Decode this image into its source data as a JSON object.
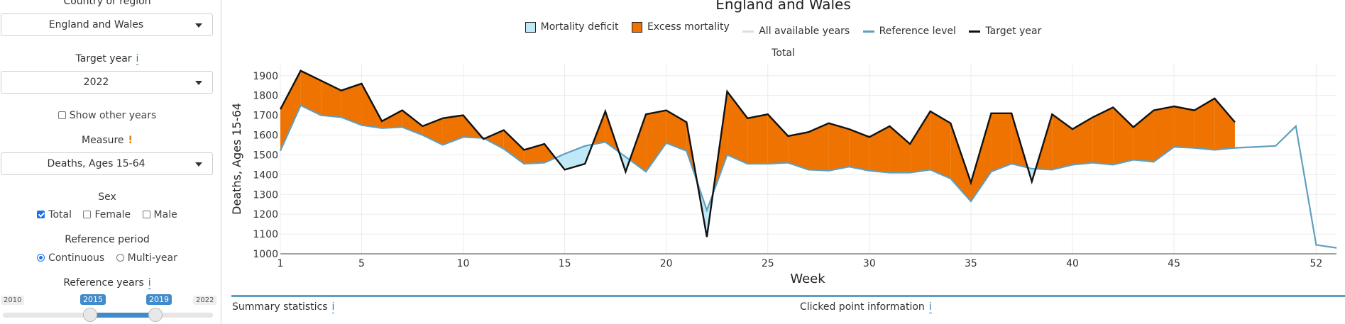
{
  "sidebar": {
    "country_label": "Country or region",
    "country_value": "England and Wales",
    "target_year_label": "Target year",
    "target_year_info": "i",
    "target_year_value": "2022",
    "show_other_years": "Show other years",
    "measure_label": "Measure",
    "measure_warn": "!",
    "measure_value": "Deaths, Ages 15-64",
    "sex_label": "Sex",
    "sex_options": [
      "Total",
      "Female",
      "Male"
    ],
    "sex_checked": [
      true,
      false,
      false
    ],
    "ref_period_label": "Reference period",
    "ref_period_options": [
      "Continuous",
      "Multi-year"
    ],
    "ref_period_selected": 0,
    "ref_years_label": "Reference years",
    "ref_years_info": "i",
    "ref_years_min": "2010",
    "ref_years_max": "2022",
    "ref_years_from": "2015",
    "ref_years_to": "2019",
    "ref_years_range": [
      2010,
      2022
    ],
    "ref_years_selected": [
      2015,
      2019
    ]
  },
  "footer": {
    "summary_label": "Summary statistics",
    "summary_info": "i",
    "clicked_label": "Clicked point information",
    "clicked_info": "i"
  },
  "colors": {
    "deficit": "#bfe9f7",
    "excess": "#ef7300",
    "all_years": "#dddddd",
    "reference": "#5f9fc0",
    "target": "#111111"
  },
  "chart_data": {
    "type": "area",
    "title": "England and Wales",
    "facet_title": "Total",
    "xlabel": "Week",
    "ylabel": "Deaths, Ages 15-64",
    "xlim": [
      1,
      53
    ],
    "ylim": [
      1000,
      1960
    ],
    "x_ticks": [
      1,
      5,
      10,
      15,
      20,
      25,
      30,
      35,
      40,
      45,
      52
    ],
    "y_ticks": [
      1000,
      1100,
      1200,
      1300,
      1400,
      1500,
      1600,
      1700,
      1800,
      1900
    ],
    "grid": true,
    "legend": [
      {
        "label": "Mortality deficit",
        "kind": "fill",
        "color": "#bfe9f7"
      },
      {
        "label": "Excess mortality",
        "kind": "fill",
        "color": "#ef7300"
      },
      {
        "label": "All available years",
        "kind": "line",
        "color": "#dddddd"
      },
      {
        "label": "Reference level",
        "kind": "line",
        "color": "#5f9fc0"
      },
      {
        "label": "Target year",
        "kind": "line",
        "color": "#111111"
      }
    ],
    "legend_position": "top",
    "series": [
      {
        "name": "Reference level",
        "x": [
          1,
          2,
          3,
          4,
          5,
          6,
          7,
          8,
          9,
          10,
          11,
          12,
          13,
          14,
          15,
          16,
          17,
          18,
          19,
          20,
          21,
          22,
          23,
          24,
          25,
          26,
          27,
          28,
          29,
          30,
          31,
          32,
          33,
          34,
          35,
          36,
          37,
          38,
          39,
          40,
          41,
          42,
          43,
          44,
          45,
          46,
          47,
          48,
          49,
          50,
          51,
          52,
          53
        ],
        "values": [
          1520,
          1750,
          1700,
          1690,
          1650,
          1635,
          1640,
          1600,
          1550,
          1590,
          1585,
          1530,
          1455,
          1460,
          1505,
          1545,
          1565,
          1490,
          1415,
          1560,
          1520,
          1220,
          1500,
          1455,
          1455,
          1460,
          1425,
          1420,
          1440,
          1420,
          1410,
          1410,
          1425,
          1380,
          1265,
          1415,
          1455,
          1430,
          1425,
          1450,
          1460,
          1450,
          1475,
          1465,
          1540,
          1535,
          1525,
          1535,
          1540,
          1545,
          1645,
          1045,
          1030
        ]
      },
      {
        "name": "Target year",
        "x": [
          1,
          2,
          3,
          4,
          5,
          6,
          7,
          8,
          9,
          10,
          11,
          12,
          13,
          14,
          15,
          16,
          17,
          18,
          19,
          20,
          21,
          22,
          23,
          24,
          25,
          26,
          27,
          28,
          29,
          30,
          31,
          32,
          33,
          34,
          35,
          36,
          37,
          38,
          39,
          40,
          41,
          42,
          43,
          44,
          45,
          46,
          47,
          48
        ],
        "values": [
          1730,
          1925,
          1875,
          1825,
          1860,
          1670,
          1725,
          1645,
          1685,
          1700,
          1580,
          1625,
          1525,
          1555,
          1425,
          1455,
          1720,
          1415,
          1705,
          1725,
          1665,
          1085,
          1820,
          1685,
          1705,
          1595,
          1615,
          1660,
          1630,
          1590,
          1645,
          1555,
          1720,
          1660,
          1360,
          1710,
          1710,
          1365,
          1705,
          1630,
          1690,
          1740,
          1640,
          1725,
          1745,
          1725,
          1785,
          1665
        ]
      }
    ]
  }
}
